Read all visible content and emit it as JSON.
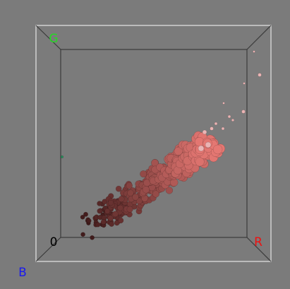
{
  "axes": {
    "green": "G",
    "red": "R",
    "blue": "B",
    "origin": "0"
  }
}
